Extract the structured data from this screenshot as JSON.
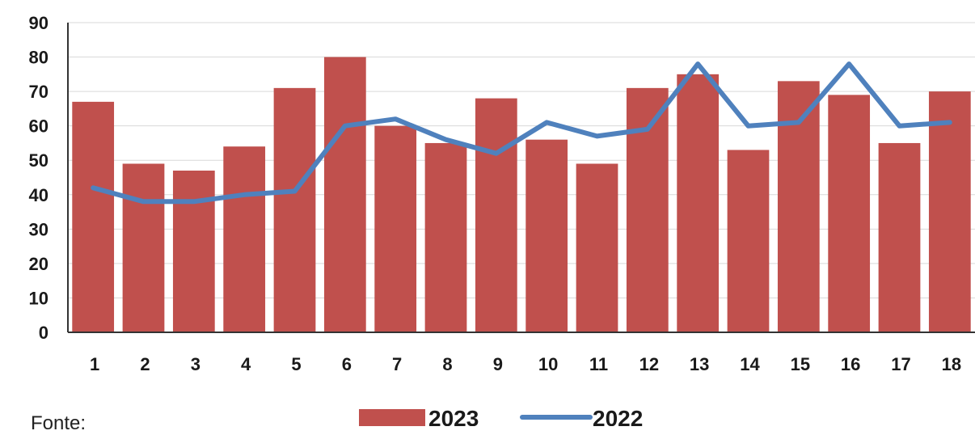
{
  "chart_data": {
    "type": "bar",
    "categories": [
      "1",
      "2",
      "3",
      "4",
      "5",
      "6",
      "7",
      "8",
      "9",
      "10",
      "11",
      "12",
      "13",
      "14",
      "15",
      "16",
      "17",
      "18"
    ],
    "series": [
      {
        "name": "2023",
        "type": "bar",
        "color": "#c0504d",
        "values": [
          67,
          49,
          47,
          54,
          71,
          80,
          60,
          55,
          68,
          56,
          49,
          71,
          75,
          53,
          73,
          69,
          55,
          70
        ]
      },
      {
        "name": "2022",
        "type": "line",
        "color": "#4f81bd",
        "values": [
          42,
          38,
          38,
          40,
          41,
          60,
          62,
          56,
          52,
          61,
          57,
          59,
          78,
          60,
          61,
          78,
          60,
          61
        ]
      }
    ],
    "ylim": [
      0,
      90
    ],
    "yticks": [
      0,
      10,
      20,
      30,
      40,
      50,
      60,
      70,
      80,
      90
    ],
    "grid": true,
    "legend": "bottom-center"
  },
  "footer": {
    "source_label": "Fonte:"
  }
}
